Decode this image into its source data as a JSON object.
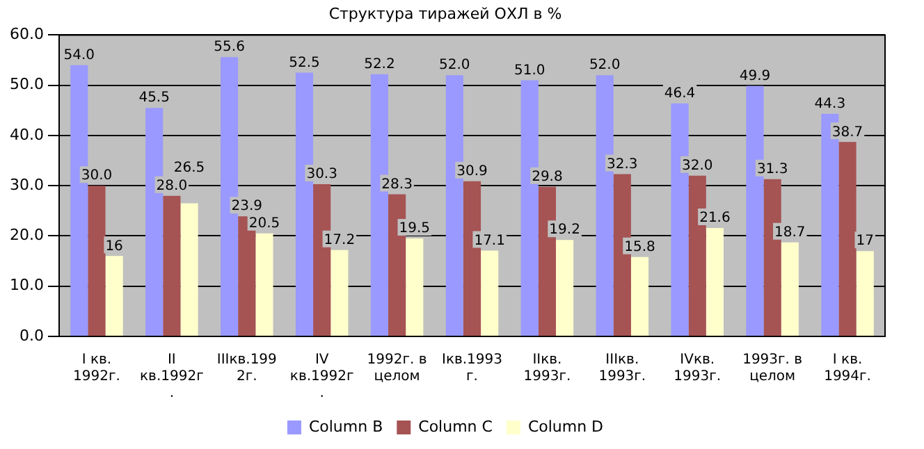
{
  "chart_data": {
    "type": "bar",
    "title": "Структура тиражей ОХЛ в %",
    "categories": [
      "I кв. 1992г.",
      "II кв.1992г.",
      "IIIкв.1992г.",
      "IV кв.1992г.",
      "1992г. в целом",
      "Iкв.1993 г.",
      "IIкв. 1993г.",
      "IIIкв. 1993г.",
      "IVкв. 1993г.",
      "1993г. в целом",
      "I кв. 1994г."
    ],
    "series": [
      {
        "name": "Column B",
        "color": "#9999ff",
        "values": [
          54.0,
          45.5,
          55.6,
          52.5,
          52.2,
          52.0,
          51.0,
          52.0,
          46.4,
          49.9,
          44.3
        ],
        "value_labels": [
          "54.0",
          "45.5",
          "55.6",
          "52.5",
          "52.2",
          "52.0",
          "51.0",
          "52.0",
          "46.4",
          "49.9",
          "44.3"
        ]
      },
      {
        "name": "Column C",
        "color": "#a65353",
        "values": [
          30.0,
          28.0,
          23.9,
          30.3,
          28.3,
          30.9,
          29.8,
          32.3,
          32.0,
          31.3,
          38.7
        ],
        "value_labels": [
          "30.0",
          "28.0",
          "23.9",
          "30.3",
          "28.3",
          "30.9",
          "29.8",
          "32.3",
          "32.0",
          "31.3",
          "38.7"
        ]
      },
      {
        "name": "Column D",
        "color": "#ffffcc",
        "values": [
          16,
          26.5,
          20.5,
          17.2,
          19.5,
          17.1,
          19.2,
          15.8,
          21.6,
          18.7,
          17
        ],
        "value_labels": [
          "16",
          "26.5",
          "20.5",
          "17.2",
          "19.5",
          "17.1",
          "19.2",
          "15.8",
          "21.6",
          "18.7",
          "17"
        ]
      }
    ],
    "ylim": [
      0,
      60
    ],
    "yticks": [
      {
        "value": 0,
        "label": "0.0"
      },
      {
        "value": 10,
        "label": "10.0"
      },
      {
        "value": 20,
        "label": "20.0"
      },
      {
        "value": 30,
        "label": "30.0"
      },
      {
        "value": 40,
        "label": "40.0"
      },
      {
        "value": 50,
        "label": "50.0"
      },
      {
        "value": 60,
        "label": "60.0"
      }
    ],
    "grid": "y",
    "legend": "bottom"
  }
}
